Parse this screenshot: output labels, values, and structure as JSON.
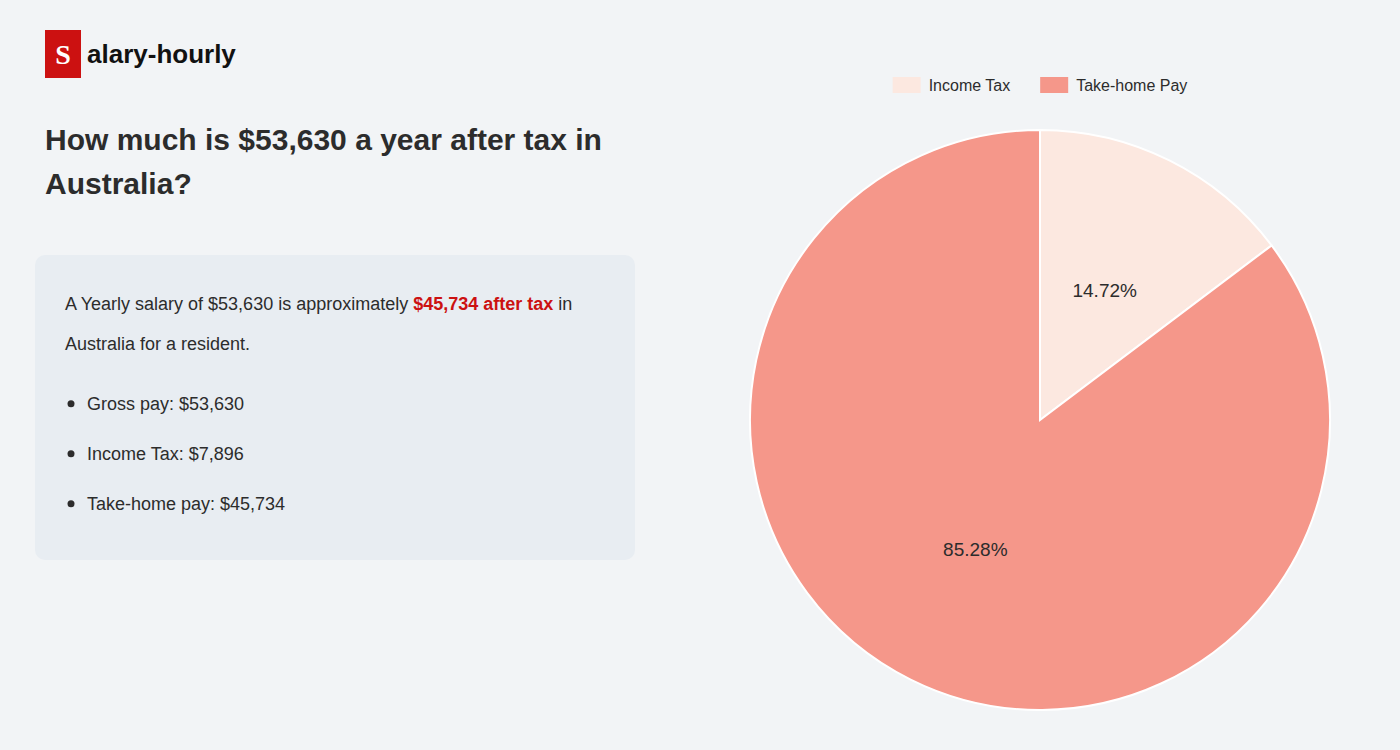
{
  "chart_data": {
    "type": "pie",
    "title": "How much is $53,630 a year after tax in Australia?",
    "annotations": [
      "S",
      "alary-hourly",
      "A Yearly salary of $53,630 is approximately ",
      "$45,734 after tax",
      " in",
      "Australia for a resident.",
      "Gross pay: $53,630",
      "Income Tax: $7,896",
      "Take-home pay: $45,734"
    ],
    "categories": [
      "Income Tax",
      "Take-home Pay"
    ],
    "values": [
      14.72,
      85.28
    ],
    "value_labels": [
      "14.72%",
      "85.28%"
    ],
    "colors": [
      "#fce8e0",
      "#f5978a"
    ],
    "data_labels": true,
    "legend": "top"
  }
}
